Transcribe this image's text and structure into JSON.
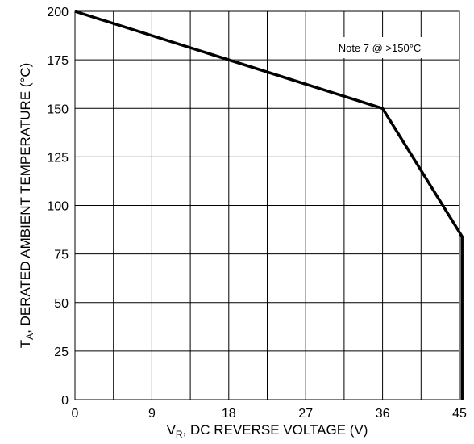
{
  "chart_data": {
    "type": "line",
    "xlabel": {
      "main": "V",
      "sub": "R",
      "rest": ", DC REVERSE VOLTAGE (V)"
    },
    "ylabel": {
      "main": "T",
      "sub": "A",
      "rest": ", DERATED AMBIENT TEMPERATURE (°C)"
    },
    "xlim": [
      0,
      45
    ],
    "ylim": [
      0,
      200
    ],
    "xticks": [
      0,
      9,
      18,
      27,
      36,
      45
    ],
    "yticks": [
      0,
      25,
      50,
      75,
      100,
      125,
      150,
      175,
      200
    ],
    "grid": true,
    "series": [
      {
        "x": [
          0,
          36,
          45.3,
          45.3
        ],
        "y": [
          200,
          150,
          84,
          0
        ],
        "color": "#000000"
      }
    ],
    "annotation": "Note 7 @ >150°C"
  }
}
